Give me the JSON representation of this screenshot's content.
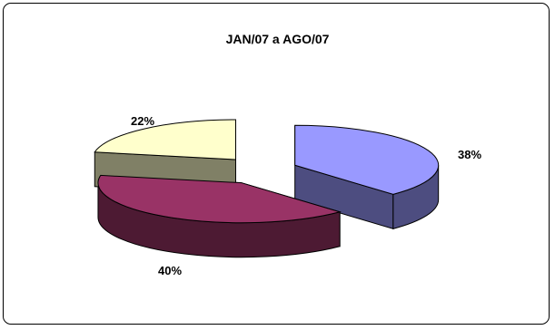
{
  "chart_data": {
    "type": "pie",
    "title": "JAN/07 a AGO/07",
    "slices": [
      {
        "label": "38%",
        "value": 38,
        "color": "#9999ff",
        "side_color": "#4d4d80"
      },
      {
        "label": "40%",
        "value": 40,
        "color": "#993366",
        "side_color": "#4d1a33"
      },
      {
        "label": "22%",
        "value": 22,
        "color": "#ffffcc",
        "side_color": "#808066"
      }
    ],
    "style": "3d-exploded",
    "legend": "none",
    "grid": false
  }
}
